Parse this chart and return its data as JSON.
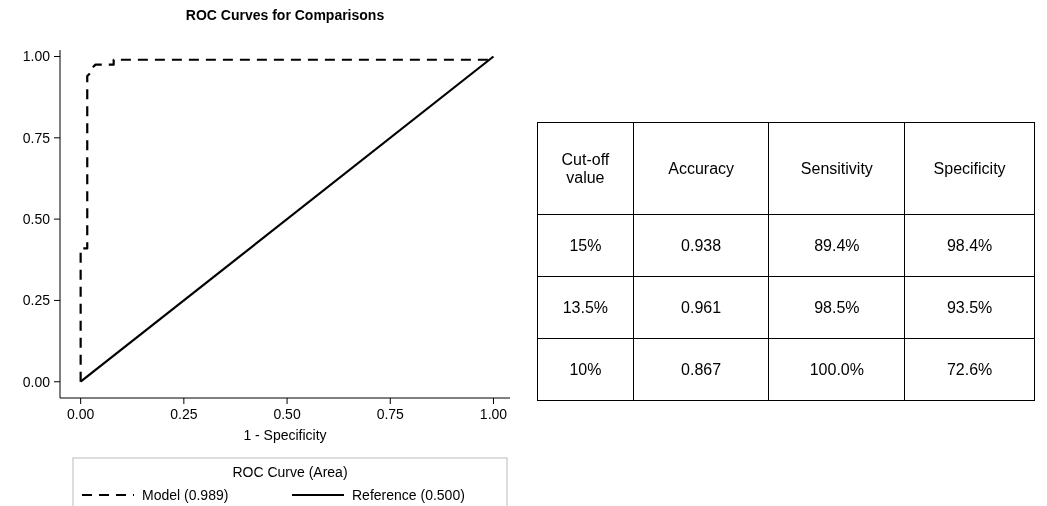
{
  "chart_data": [
    {
      "type": "line",
      "title": "ROC Curves for Comparisons",
      "xlabel": "1 - Specificity",
      "legend_title": "ROC Curve (Area)",
      "legend": "bottom",
      "xlim": [
        -0.05,
        1.04
      ],
      "ylim": [
        -0.05,
        1.02
      ],
      "xticks": [
        {
          "value": 0,
          "label": "0.00"
        },
        {
          "value": 0.25,
          "label": "0.25"
        },
        {
          "value": 0.5,
          "label": "0.50"
        },
        {
          "value": 0.75,
          "label": "0.75"
        },
        {
          "value": 1,
          "label": "1.00"
        }
      ],
      "yticks": [
        {
          "value": 0,
          "label": "0.00"
        },
        {
          "value": 0.25,
          "label": "0.25"
        },
        {
          "value": 0.5,
          "label": "0.50"
        },
        {
          "value": 0.75,
          "label": "0.75"
        },
        {
          "value": 1,
          "label": "1.00"
        }
      ],
      "series": [
        {
          "name": "Model (0.989)",
          "color": "#000000",
          "line_style": "dashed",
          "x": [
            0,
            0,
            0.016,
            0.016,
            0.024,
            0.028,
            0.036,
            0.08,
            0.08,
            0.1,
            1
          ],
          "values": [
            0,
            0.41,
            0.41,
            0.94,
            0.95,
            0.965,
            0.975,
            0.975,
            0.99,
            0.99,
            0.99
          ]
        },
        {
          "name": "Reference (0.500)",
          "color": "#000000",
          "line_style": "solid",
          "x": [
            0,
            1
          ],
          "values": [
            0,
            1
          ]
        }
      ]
    },
    {
      "type": "other",
      "ylabel": "Cut-off value",
      "categories": [
        "Accuracy",
        "Sensitivity",
        "Specificity"
      ],
      "y_categories": [
        "15%",
        "13.5%",
        "10%"
      ],
      "cell_labels": [
        [
          "0.938",
          "89.4%",
          "98.4%"
        ],
        [
          "0.961",
          "98.5%",
          "93.5%"
        ],
        [
          "0.867",
          "100.0%",
          "72.6%"
        ]
      ]
    }
  ]
}
